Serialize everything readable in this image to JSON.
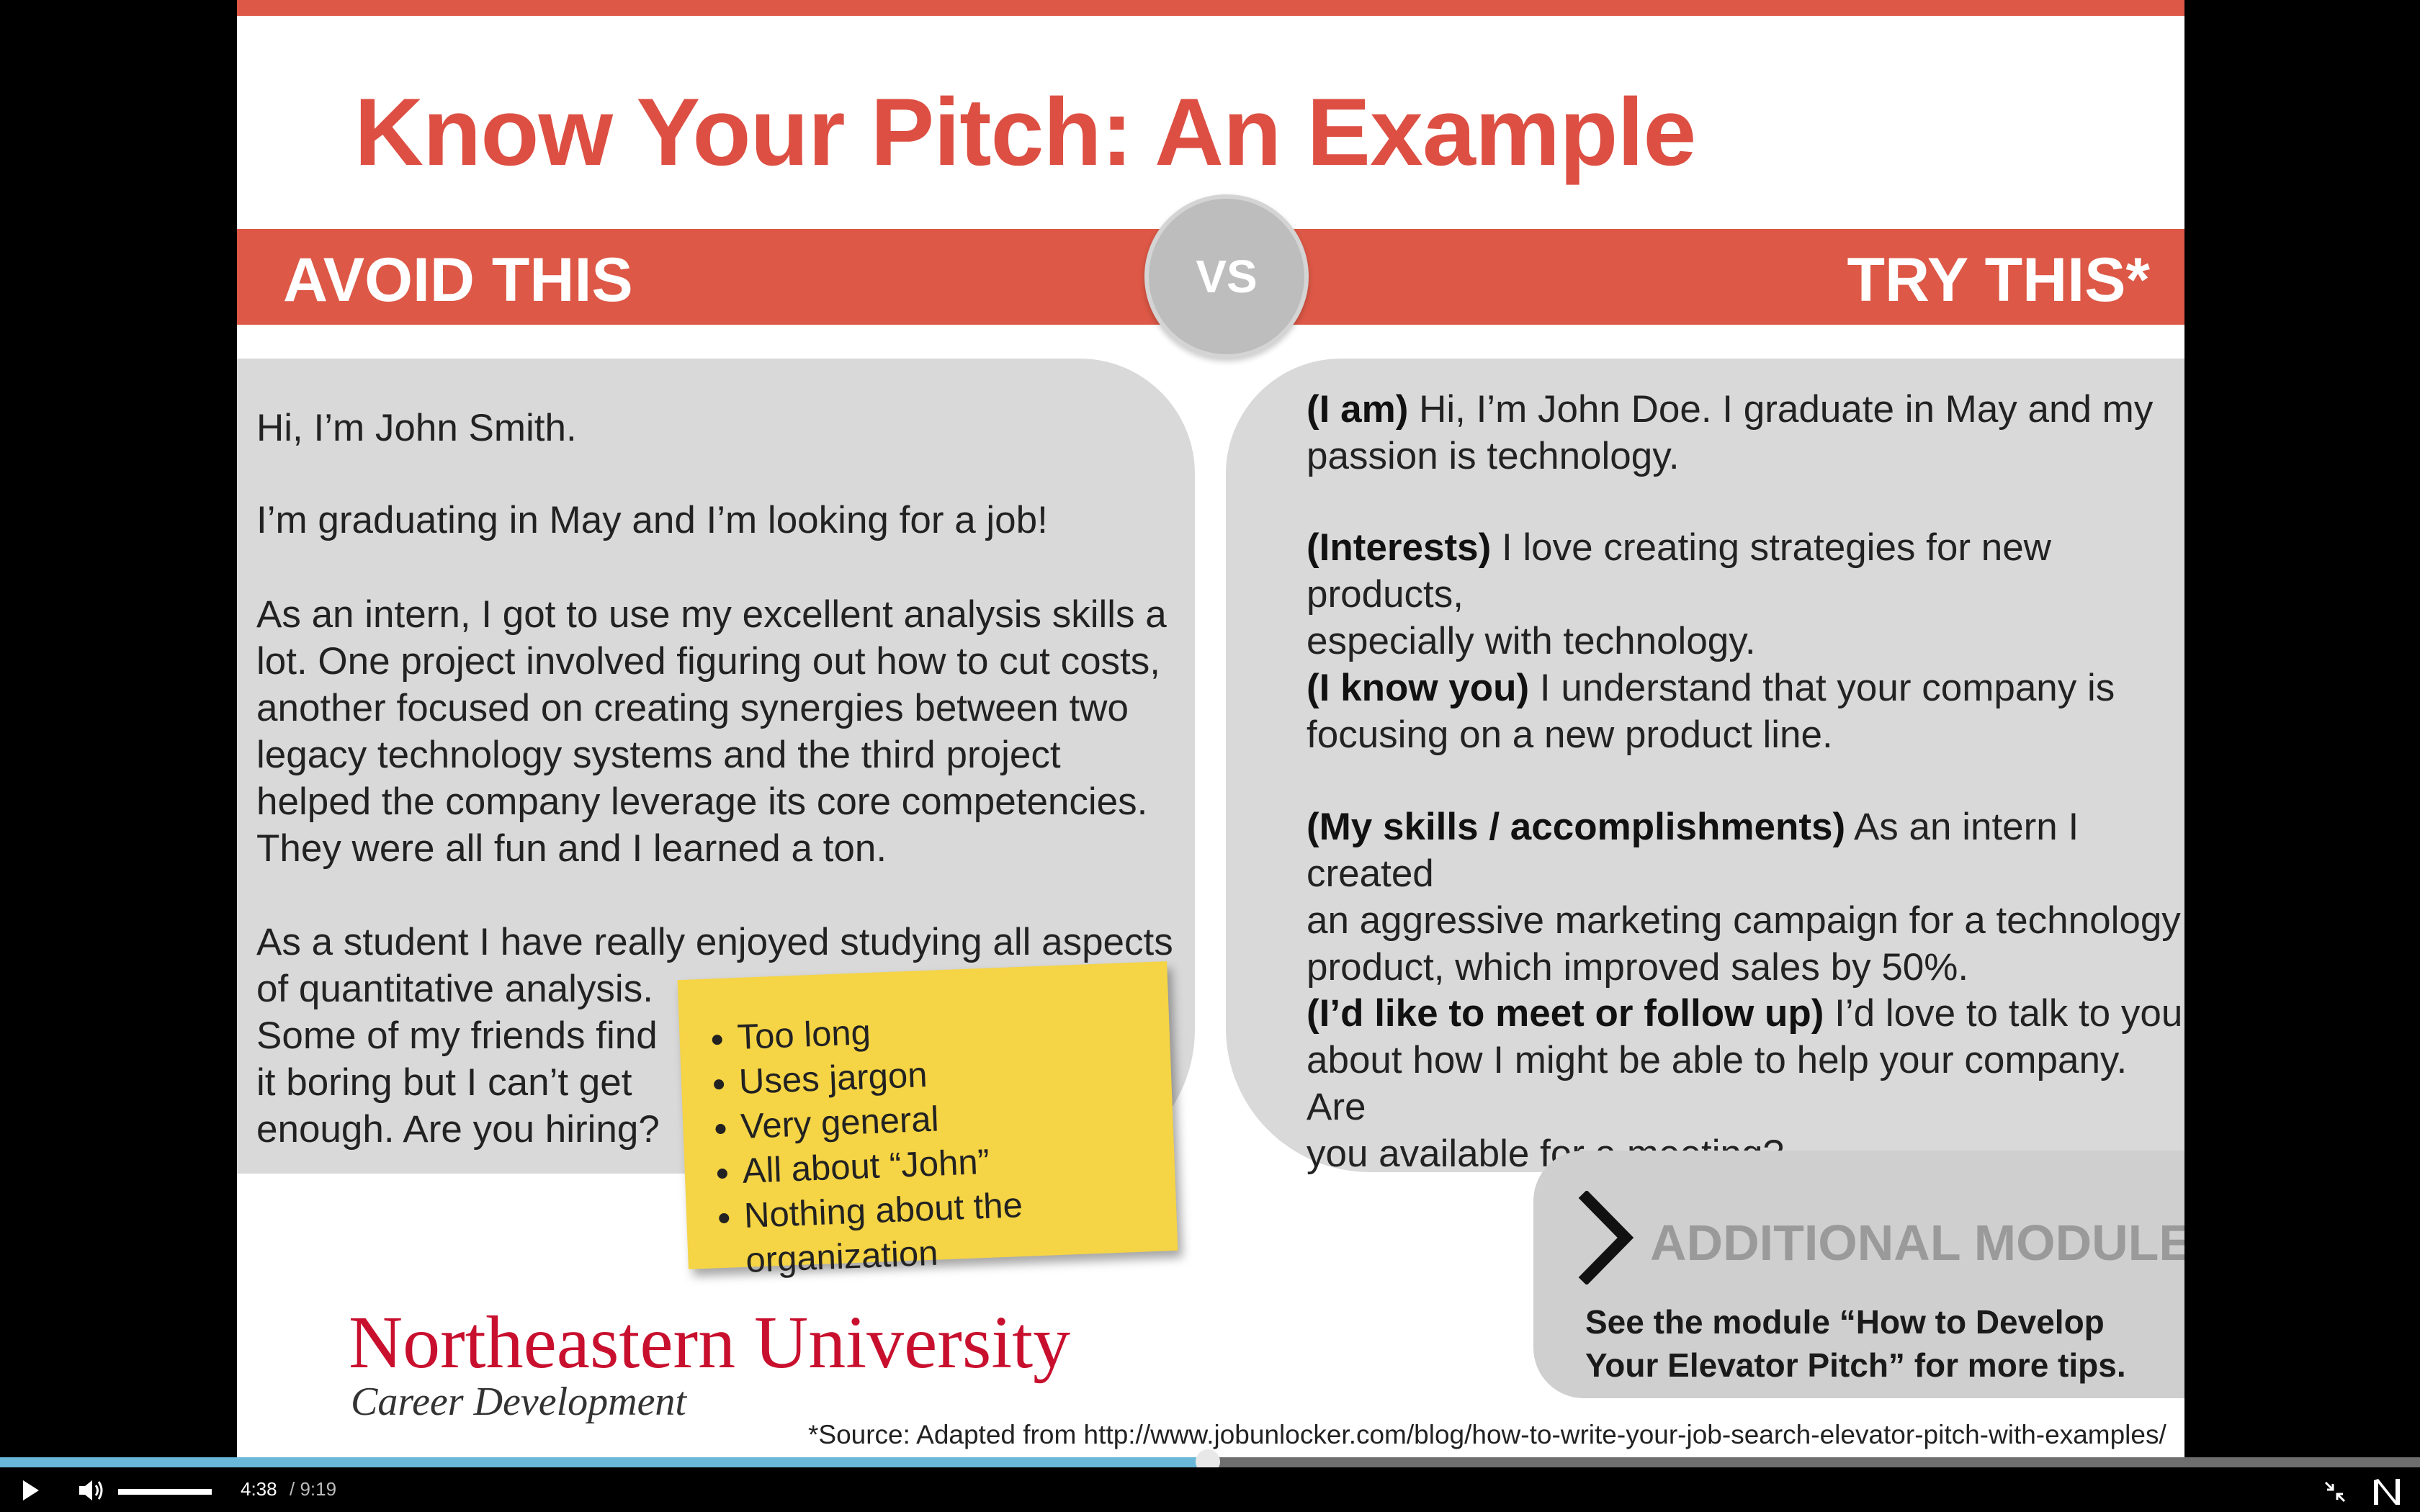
{
  "slide": {
    "title": "Know Your Pitch: An Example",
    "banner_left": "AVOID THIS",
    "banner_right": "TRY THIS*",
    "vs": "VS",
    "avoid": {
      "p1": "Hi, I’m John Smith.",
      "p2": "I’m graduating in May and I’m looking for a job!",
      "p3": [
        "As an intern, I got to use my excellent analysis skills a",
        "lot. One project involved figuring out how to cut costs,",
        "another focused on creating synergies between two",
        "legacy technology systems and the third project",
        "helped the company leverage its core competencies.",
        "They were all fun and I learned a ton."
      ],
      "p4": [
        "As a student I have really enjoyed studying all aspects",
        "of quantitative analysis."
      ],
      "p5": [
        "Some of my friends find",
        "it boring but I can’t get",
        "enough.  Are you hiring?"
      ]
    },
    "sticky_note": [
      "Too long",
      "Uses jargon",
      "Very general",
      "All about “John”",
      "Nothing about the organization"
    ],
    "try": {
      "s1_label": "(I am)",
      "s1_text": [
        "  Hi, I’m John Doe. I graduate in May and my",
        "passion is technology."
      ],
      "s2_label": "(Interests)",
      "s2_text": [
        " I love creating strategies for new products,",
        "especially with technology."
      ],
      "s3_label": "(I know you)",
      "s3_text": [
        " I understand that your company is",
        "focusing on a new product line."
      ],
      "s4_label": "(My skills / accomplishments)",
      "s4_text": [
        " As an intern I created",
        "an aggressive marketing campaign for a technology",
        "product, which improved sales by 50%."
      ],
      "s5_label": "(I’d like to meet or follow up)",
      "s5_text": [
        " I’d love to talk to you",
        "about how I might be able to help your company. Are",
        "you available for a meeting?"
      ]
    },
    "modules": {
      "title": "ADDITIONAL MODULES",
      "desc": [
        "See the module “How to Develop",
        "Your Elevator Pitch” for more tips."
      ]
    },
    "university": "Northeastern University",
    "department": "Career Development",
    "source": "*Source: Adapted from http://www.jobunlocker.com/blog/how-to-write-your-job-search-elevator-pitch-with-examples/"
  },
  "player": {
    "current_time": "4:38",
    "total_time": "/ 9:19",
    "progress_fraction": 0.499,
    "volume_fraction": 1.0,
    "icons": [
      "play-icon",
      "volume-icon",
      "exit-fullscreen-icon",
      "brand-n-icon"
    ],
    "colors": {
      "progress": "#69b8da",
      "accent": "#dd5846"
    }
  }
}
